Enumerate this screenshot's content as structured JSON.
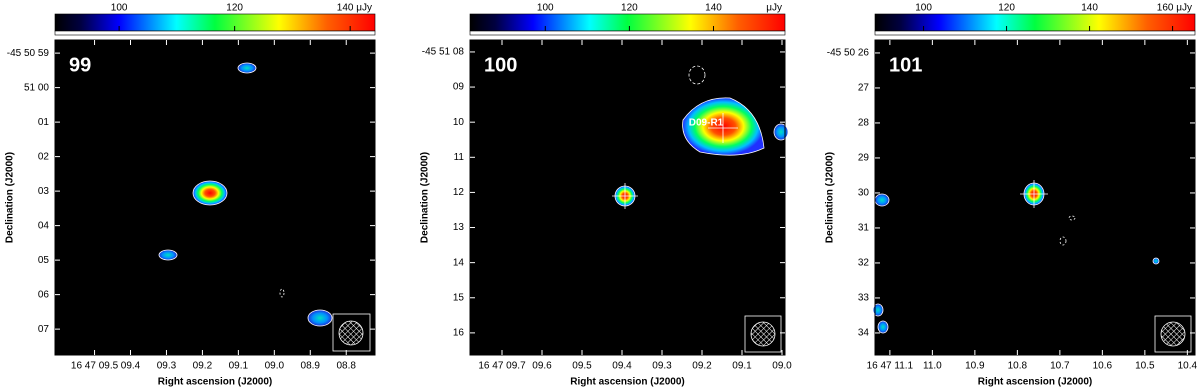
{
  "chart_data": [
    {
      "type": "map",
      "label": "99",
      "xlabel": "Right ascension (J2000)",
      "ylabel": "Declination (J2000)",
      "xlim": [
        9.61,
        8.72
      ],
      "xticks": [
        {
          "value": 9.5,
          "label": "16 47 09.5"
        },
        {
          "value": 9.4,
          "label": "09.4"
        },
        {
          "value": 9.3,
          "label": "09.3"
        },
        {
          "value": 9.2,
          "label": "09.2"
        },
        {
          "value": 9.1,
          "label": "09.1"
        },
        {
          "value": 9.0,
          "label": "09.0"
        },
        {
          "value": 8.9,
          "label": "08.9"
        },
        {
          "value": 8.8,
          "label": "08.8"
        }
      ],
      "ylim": [
        7.75,
        -1.38
      ],
      "yticks": [
        {
          "value": -1,
          "label": "-45 50 59"
        },
        {
          "value": 0,
          "label": "51 00"
        },
        {
          "value": 1,
          "label": "01"
        },
        {
          "value": 2,
          "label": "02"
        },
        {
          "value": 3,
          "label": "03"
        },
        {
          "value": 4,
          "label": "04"
        },
        {
          "value": 5,
          "label": "05"
        },
        {
          "value": 6,
          "label": "06"
        },
        {
          "value": 7,
          "label": "07"
        }
      ],
      "colorbar": {
        "lim": [
          88.9,
          144.3
        ],
        "ticks": [
          100,
          120,
          {
            "value": 140,
            "label": "140 μJy"
          }
        ]
      }
    },
    {
      "type": "map",
      "label": "100",
      "xlabel": "Right ascension (J2000)",
      "ylabel": "Declination (J2000)",
      "xlim": [
        9.78,
        8.9925
      ],
      "xticks": [
        {
          "value": 9.7,
          "label": "16 47 09.7"
        },
        {
          "value": 9.6,
          "label": "09.6"
        },
        {
          "value": 9.5,
          "label": "09.5"
        },
        {
          "value": 9.4,
          "label": "09.4"
        },
        {
          "value": 9.3,
          "label": "09.3"
        },
        {
          "value": 9.2,
          "label": "09.2"
        },
        {
          "value": 9.1,
          "label": "09.1"
        },
        {
          "value": 9.0,
          "label": "09.0"
        }
      ],
      "ylim": [
        16.63,
        7.66
      ],
      "yticks": [
        {
          "value": 8,
          "label": "-45 51 08"
        },
        {
          "value": 9,
          "label": "09"
        },
        10,
        11,
        12,
        13,
        14,
        15,
        16
      ],
      "colorbar": {
        "lim": [
          82.1,
          157
        ],
        "ticks": [
          100,
          120,
          140
        ],
        "unit": "μJy"
      },
      "annotations": [
        "D09-R1"
      ]
    },
    {
      "type": "map",
      "label": "101",
      "xlabel": "Right ascension (J2000)",
      "ylabel": "Declination (J2000)",
      "xlim": [
        11.135,
        10.382
      ],
      "xticks": [
        {
          "value": 11.1,
          "label": "16 47 11.1"
        },
        {
          "value": 11.0,
          "label": "11.0"
        },
        10.9,
        10.8,
        10.7,
        10.6,
        10.5,
        10.4
      ],
      "ylim": [
        34.63,
        25.63
      ],
      "yticks": [
        {
          "value": 26,
          "label": "-45 50 26"
        },
        27,
        28,
        29,
        30,
        31,
        32,
        33,
        34
      ],
      "colorbar": {
        "lim": [
          88.3,
          165.4
        ],
        "ticks": [
          100,
          120,
          140,
          {
            "value": 160,
            "label": "160 μJy"
          }
        ]
      }
    }
  ]
}
